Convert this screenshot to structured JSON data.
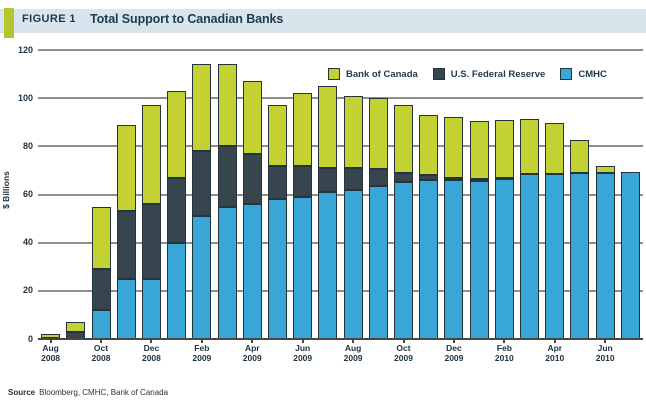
{
  "header": {
    "figure_label": "FIGURE 1",
    "title": "Total Support to Canadian Banks"
  },
  "footer": {
    "source_label": "Source",
    "source_text": "Bloomberg, CMHC, Bank of Canada"
  },
  "colors": {
    "band": "#d9e5ec",
    "accent_green": "#b5c52e",
    "bar_green": "#c3d232",
    "bar_dark": "#36454e",
    "bar_blue": "#38a7d8",
    "segment_border": "#25343c",
    "gridline": "#8f8f8f",
    "axis": "#474747",
    "text_navy": "#1c3a4e"
  },
  "chart_data": {
    "type": "bar",
    "stacked": true,
    "title": "Total Support to Canadian Banks",
    "ylabel": "$ Billions",
    "ylim": [
      0,
      120
    ],
    "ytick_interval": 20,
    "grid": true,
    "legend_position": "top-right",
    "legend_order": [
      "Bank of Canada",
      "U.S. Federal Reserve",
      "CMHC"
    ],
    "categories": [
      "Aug 2008",
      "Sep 2008",
      "Oct 2008",
      "Nov 2008",
      "Dec 2008",
      "Jan 2009",
      "Feb 2009",
      "Mar 2009",
      "Apr 2009",
      "May 2009",
      "Jun 2009",
      "Jul 2009",
      "Aug 2009",
      "Sep 2009",
      "Oct 2009",
      "Nov 2009",
      "Dec 2009",
      "Jan 2010",
      "Feb 2010",
      "Mar 2010",
      "Apr 2010",
      "May 2010",
      "Jun 2010",
      "Jul 2010"
    ],
    "xtick_label_every": 2,
    "series": [
      {
        "name": "CMHC",
        "color": "#38a7d8",
        "values": [
          0,
          0,
          12,
          25,
          25,
          40,
          51,
          55,
          56,
          58,
          59,
          61,
          62,
          63.5,
          65,
          66,
          66,
          65.5,
          66.5,
          68.5,
          68.5,
          69,
          69,
          69.5
        ]
      },
      {
        "name": "U.S. Federal Reserve",
        "color": "#36454e",
        "values": [
          0.5,
          3,
          17,
          28,
          31,
          27,
          27,
          25,
          21,
          14,
          13,
          10,
          9,
          7,
          4,
          2,
          1,
          1,
          0.5,
          0,
          0,
          0,
          0,
          0
        ]
      },
      {
        "name": "Bank of Canada",
        "color": "#c3d232",
        "values": [
          1.5,
          4,
          26,
          36,
          41,
          36,
          36,
          34,
          30,
          25,
          30,
          34,
          30,
          29.5,
          28,
          25,
          25,
          24,
          24,
          23,
          21,
          13.5,
          3,
          0
        ]
      }
    ]
  }
}
